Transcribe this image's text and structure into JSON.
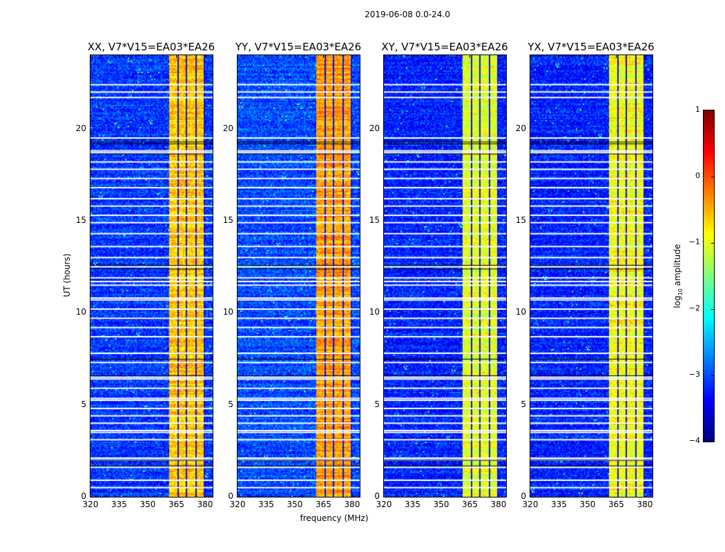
{
  "chart_data": {
    "type": "heatmap",
    "title": "2019-06-08 0.0-24.0",
    "xlabel": "frequency (MHz)",
    "ylabel": "UT (hours)",
    "xlim": [
      320,
      384
    ],
    "ylim": [
      0,
      24
    ],
    "xticks": [
      320,
      335,
      350,
      365,
      380
    ],
    "yticks": [
      0,
      5,
      10,
      15,
      20
    ],
    "colorbar": {
      "label_main": "log",
      "label_sub": "10",
      "label_rest": " amplitude",
      "range": [
        -4,
        1
      ],
      "ticks": [
        1,
        0,
        -1,
        -2,
        -3,
        -4
      ],
      "tick_labels": [
        "1",
        "0",
        "−1",
        "−2",
        "−3",
        "−4"
      ],
      "colormap": "jet"
    },
    "panels": [
      {
        "title": "XX, V7*V15=EA03*EA26",
        "band_level": -0.6,
        "background_level": -3.1
      },
      {
        "title": "YY, V7*V15=EA03*EA26",
        "band_level": -0.4,
        "background_level": -3.0
      },
      {
        "title": "XY, V7*V15=EA03*EA26",
        "band_level": -1.0,
        "background_level": -3.2
      },
      {
        "title": "YX, V7*V15=EA03*EA26",
        "band_level": -0.9,
        "background_level": -3.2
      }
    ],
    "rfi_band_mhz": [
      360.5,
      380.0
    ],
    "band_gaps_mhz": [
      365.5,
      369.8,
      374.9,
      379.2
    ],
    "flagged_hours": [
      0.5,
      0.9,
      1.6,
      2.0,
      2.1,
      3.1,
      3.5,
      3.6,
      4.0,
      4.4,
      4.8,
      5.25,
      5.35,
      5.9,
      6.4,
      6.5,
      7.3,
      7.8,
      8.7,
      9.2,
      9.7,
      10.2,
      10.7,
      10.8,
      11.5,
      11.7,
      11.9,
      12.5,
      13.0,
      13.6,
      14.3,
      14.9,
      15.3,
      15.8,
      16.2,
      16.8,
      17.3,
      17.8,
      18.2,
      18.7,
      18.8,
      19.5,
      21.7,
      22.0,
      22.4
    ],
    "black_hours": [
      1.7,
      2.0,
      12.4,
      12.6,
      18.65,
      19.2,
      19.3,
      6.6,
      7.5
    ]
  }
}
